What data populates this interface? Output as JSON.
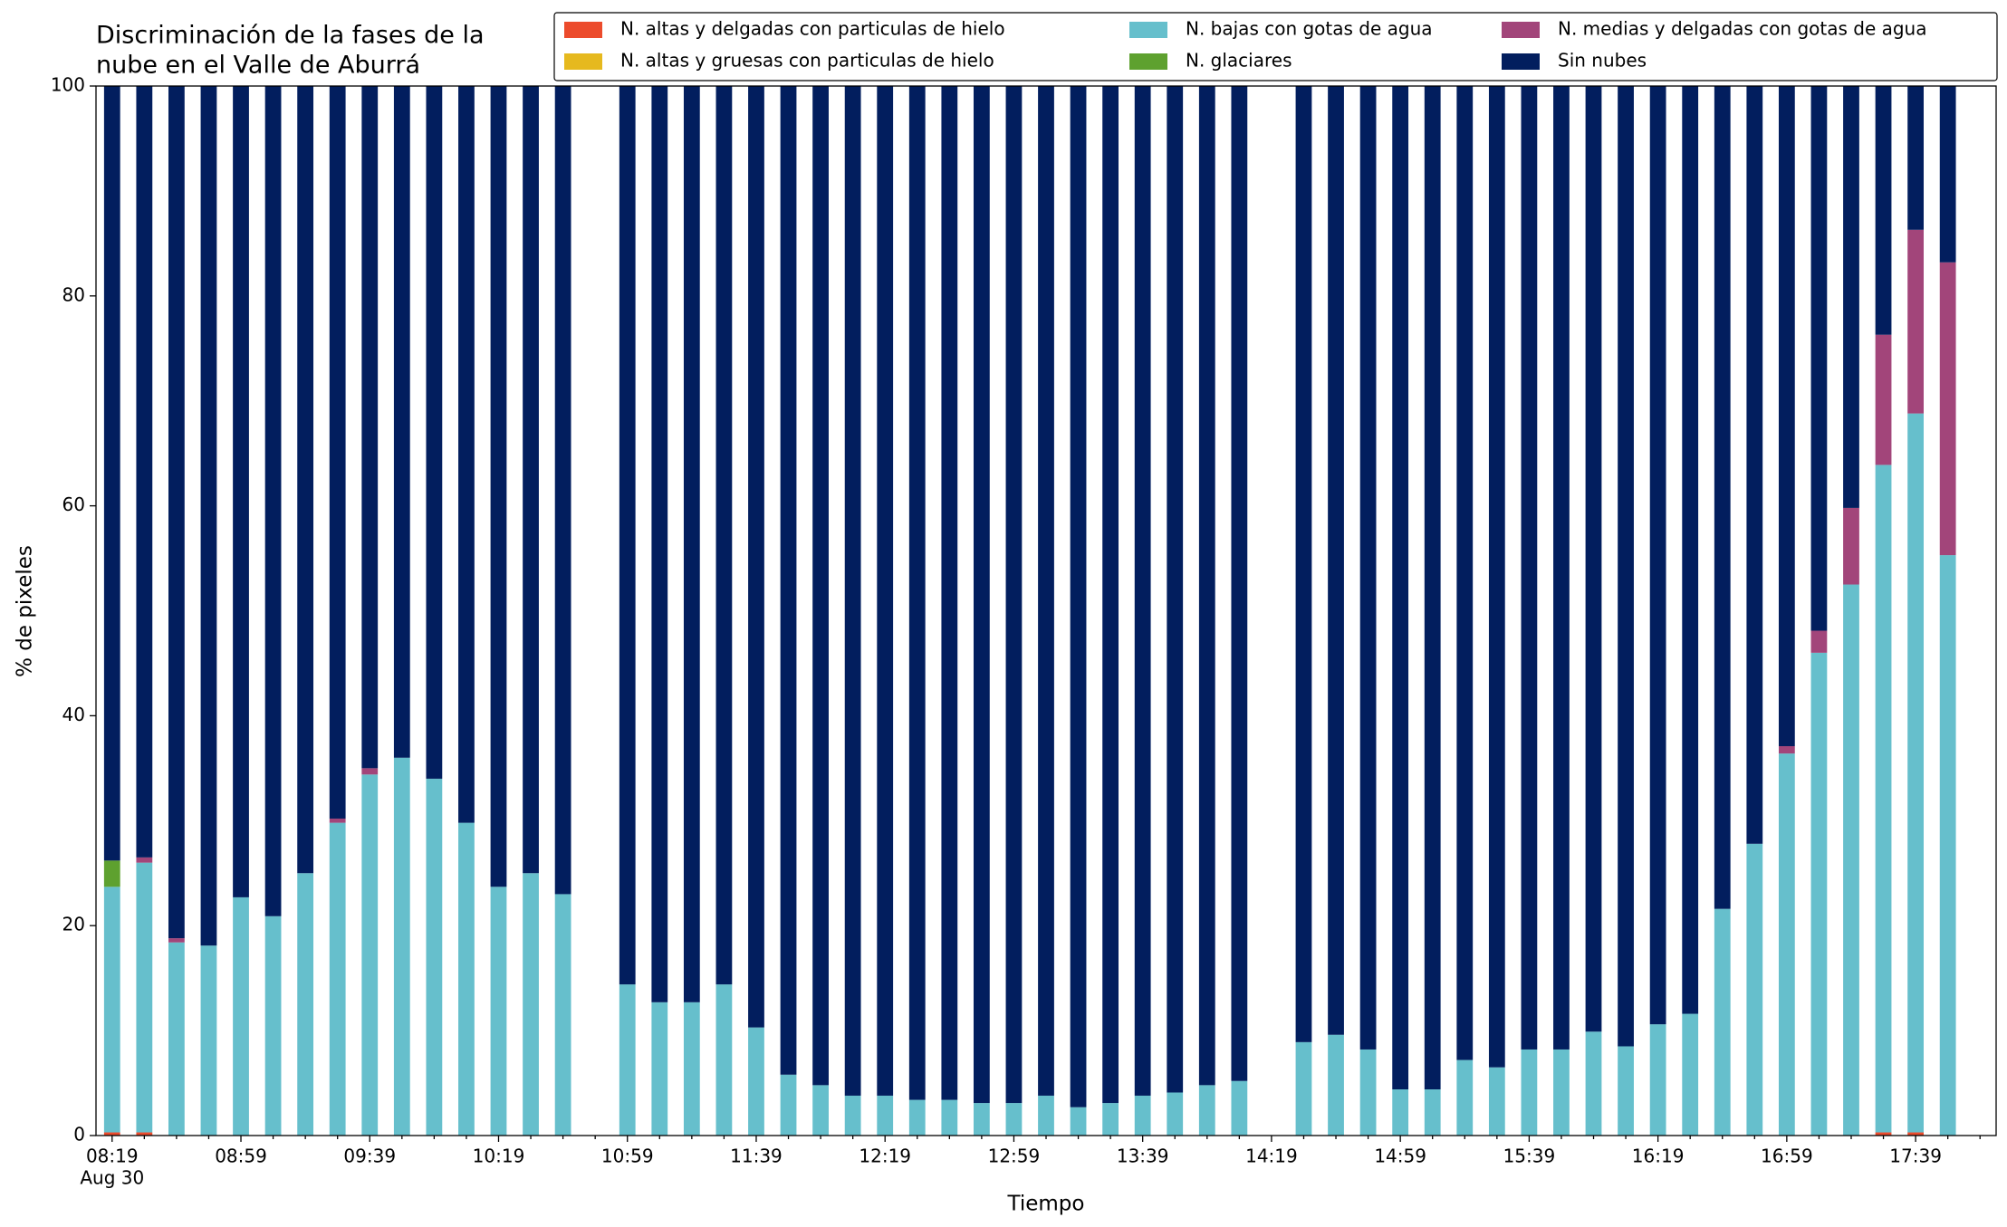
{
  "chart_data": {
    "type": "stacked_bar",
    "title": [
      "Discriminación de la fases de la",
      "nube en el Valle de Aburrá"
    ],
    "xlabel": "Tiempo",
    "ylabel": "% de pixeles",
    "date_label": "Aug 30",
    "categories": [
      "08:19",
      null,
      null,
      null,
      "08:59",
      null,
      null,
      null,
      "09:39",
      null,
      null,
      null,
      "10:19",
      null,
      null,
      null,
      "10:59",
      null,
      null,
      null,
      "11:39",
      null,
      null,
      null,
      "12:19",
      null,
      null,
      null,
      "12:59",
      null,
      null,
      null,
      "13:39",
      null,
      null,
      null,
      "14:19",
      null,
      null,
      null,
      "14:59",
      null,
      null,
      null,
      "15:39",
      null,
      null,
      null,
      "16:19",
      null,
      null,
      null,
      "16:59",
      null,
      null,
      null,
      "17:39",
      null,
      null
    ],
    "xlim": [
      -0.5,
      58.5
    ],
    "ylim": [
      0,
      100
    ],
    "yticks": [
      0,
      20,
      40,
      60,
      80,
      100
    ],
    "grid": false,
    "legend": "upper right",
    "series": [
      {
        "name": "N. altas y delgadas con particulas de hielo",
        "color": "#ec4b2c",
        "values": [
          0.3,
          0.3,
          0,
          0,
          0,
          0,
          0,
          0,
          0,
          0,
          0,
          0,
          0,
          0,
          0,
          null,
          0,
          0,
          0,
          0,
          0,
          0,
          0,
          0,
          0,
          0,
          0,
          0,
          0,
          0,
          0,
          0,
          0,
          0,
          0,
          0,
          null,
          0,
          0,
          0,
          0,
          0,
          0,
          0,
          0,
          0,
          0,
          0,
          0,
          0,
          0,
          0,
          0,
          0,
          0,
          0.3,
          0.3,
          0,
          null
        ]
      },
      {
        "name": "N. altas y gruesas con particulas de hielo",
        "color": "#e6b91e",
        "values": [
          0,
          0,
          0,
          0,
          0,
          0,
          0,
          0,
          0,
          0,
          0,
          0,
          0,
          0,
          0,
          null,
          0,
          0,
          0,
          0,
          0,
          0,
          0,
          0,
          0,
          0,
          0,
          0,
          0,
          0,
          0,
          0,
          0,
          0,
          0,
          0,
          null,
          0,
          0,
          0,
          0,
          0,
          0,
          0,
          0,
          0,
          0,
          0,
          0,
          0,
          0,
          0,
          0,
          0,
          0,
          0,
          0,
          0,
          null
        ]
      },
      {
        "name": "N. bajas con gotas de agua",
        "color": "#66bfcc",
        "values": [
          23.4,
          25.7,
          18.4,
          18.1,
          22.7,
          20.9,
          25.0,
          29.8,
          34.4,
          36.0,
          34.0,
          29.8,
          23.7,
          25.0,
          23.0,
          null,
          14.4,
          12.7,
          12.7,
          14.4,
          10.3,
          5.8,
          4.8,
          3.8,
          3.8,
          3.4,
          3.4,
          3.1,
          3.1,
          3.8,
          2.7,
          3.1,
          3.8,
          4.1,
          4.8,
          5.2,
          null,
          8.9,
          9.6,
          8.2,
          4.4,
          4.4,
          7.2,
          6.5,
          8.2,
          8.2,
          9.9,
          8.5,
          10.6,
          11.6,
          21.6,
          27.8,
          36.4,
          46.0,
          52.5,
          63.6,
          68.5,
          55.3,
          null
        ]
      },
      {
        "name": "N. glaciares",
        "color": "#5ea12f",
        "values": [
          2.5,
          0,
          0,
          0,
          0,
          0,
          0,
          0,
          0,
          0,
          0,
          0,
          0,
          0,
          0,
          null,
          0,
          0,
          0,
          0,
          0,
          0,
          0,
          0,
          0,
          0,
          0,
          0,
          0,
          0,
          0,
          0,
          0,
          0,
          0,
          0,
          null,
          0,
          0,
          0,
          0,
          0,
          0,
          0,
          0,
          0,
          0,
          0,
          0,
          0,
          0,
          0,
          0,
          0,
          0,
          0,
          0,
          0,
          null
        ]
      },
      {
        "name": "N. medias y delgadas con gotas de agua",
        "color": "#a2457a",
        "values": [
          0,
          0.5,
          0.4,
          0,
          0,
          0,
          0,
          0.4,
          0.6,
          0,
          0,
          0,
          0,
          0,
          0,
          null,
          0,
          0,
          0,
          0,
          0,
          0,
          0,
          0,
          0,
          0,
          0,
          0,
          0,
          0,
          0,
          0,
          0,
          0,
          0,
          0,
          null,
          0,
          0,
          0,
          0,
          0,
          0,
          0,
          0,
          0,
          0,
          0,
          0,
          0,
          0,
          0,
          0.7,
          2.1,
          7.3,
          12.4,
          17.5,
          27.9,
          null
        ]
      },
      {
        "name": "Sin nubes",
        "color": "#021e5e",
        "values": [
          73.8,
          73.5,
          81.2,
          81.9,
          77.3,
          79.1,
          75.0,
          69.8,
          65.0,
          64.0,
          66.0,
          70.2,
          76.3,
          75.0,
          77.0,
          null,
          85.6,
          87.3,
          87.3,
          85.6,
          89.7,
          94.2,
          95.2,
          96.2,
          96.2,
          96.6,
          96.6,
          96.9,
          96.9,
          96.2,
          97.3,
          96.9,
          96.2,
          95.9,
          95.2,
          94.8,
          null,
          91.1,
          90.4,
          91.8,
          95.6,
          95.6,
          92.8,
          93.5,
          91.8,
          91.8,
          90.1,
          91.5,
          89.4,
          88.4,
          78.4,
          72.2,
          62.9,
          51.9,
          40.2,
          23.7,
          13.7,
          16.8,
          null
        ]
      }
    ]
  }
}
